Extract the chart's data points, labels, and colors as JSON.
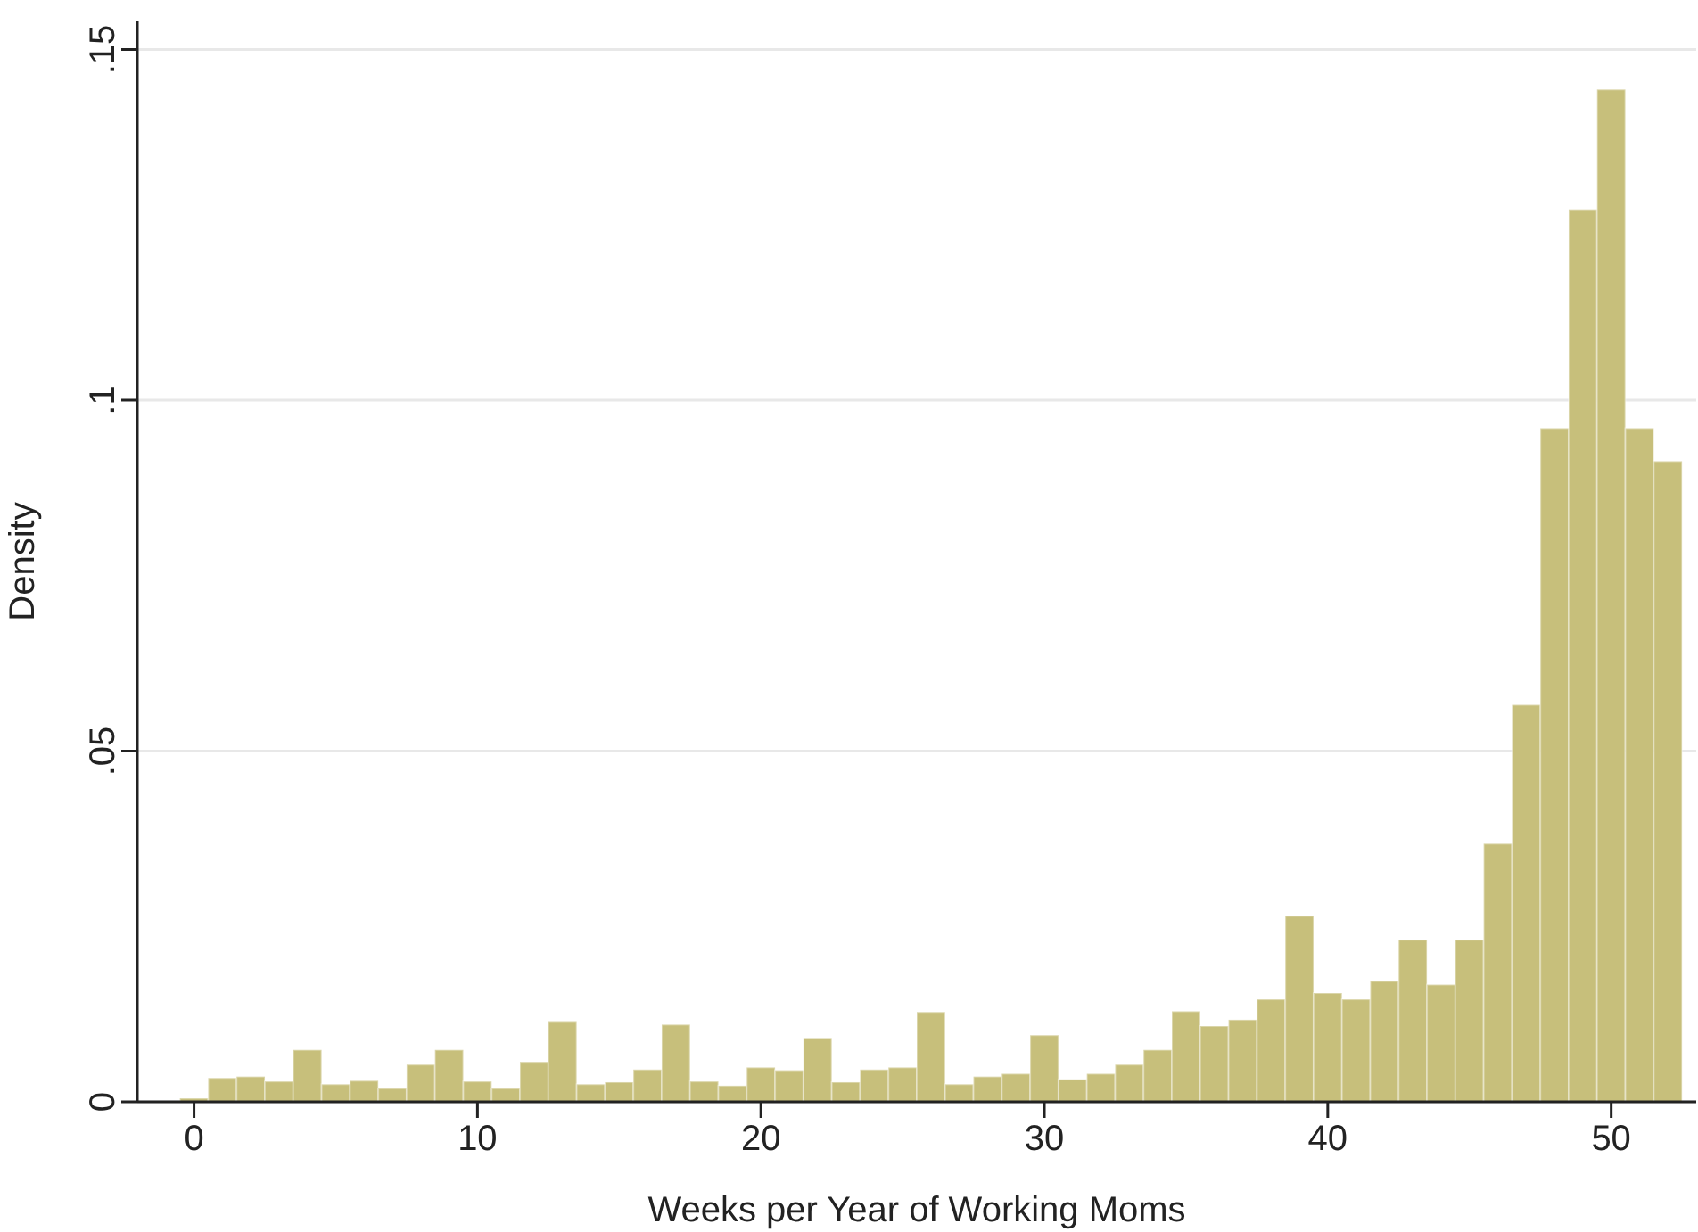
{
  "chart_data": {
    "type": "histogram",
    "xlabel": "Weeks per Year of Working Moms",
    "ylabel": "Density",
    "bins": [
      -0.5,
      0.5,
      1.5,
      2.5,
      3.5,
      4.5,
      5.5,
      6.5,
      7.5,
      8.5,
      9.5,
      10.5,
      11.5,
      12.5,
      13.5,
      14.5,
      15.5,
      16.5,
      17.5,
      18.5,
      19.5,
      20.5,
      21.5,
      22.5,
      23.5,
      24.5,
      25.5,
      26.5,
      27.5,
      28.5,
      29.5,
      30.5,
      31.5,
      32.5,
      33.5,
      34.5,
      35.5,
      36.5,
      37.5,
      38.5,
      39.5,
      40.5,
      41.5,
      42.5,
      43.5,
      44.5,
      45.5,
      46.5,
      47.5,
      48.5,
      49.5,
      50.5,
      51.5,
      52.5
    ],
    "values": [
      0.0005,
      0.0034,
      0.0036,
      0.0029,
      0.0074,
      0.0025,
      0.003,
      0.0019,
      0.0053,
      0.0074,
      0.0029,
      0.0019,
      0.0057,
      0.0115,
      0.0025,
      0.0028,
      0.0046,
      0.011,
      0.0029,
      0.0023,
      0.0049,
      0.0045,
      0.0091,
      0.0028,
      0.0046,
      0.0049,
      0.0128,
      0.0025,
      0.0036,
      0.004,
      0.0095,
      0.0032,
      0.004,
      0.0053,
      0.0074,
      0.0129,
      0.0108,
      0.0117,
      0.0146,
      0.0265,
      0.0155,
      0.0146,
      0.0172,
      0.0231,
      0.0167,
      0.0231,
      0.0368,
      0.0566,
      0.096,
      0.1271,
      0.1443,
      0.096,
      0.0913
    ],
    "color": "#c7bf7b",
    "xlim": [
      -2,
      53
    ],
    "xticks": [
      0,
      10,
      20,
      30,
      40,
      50
    ],
    "ylim": [
      0,
      0.154
    ],
    "yticks": [
      0,
      {
        "value": 0.05,
        "label": ".05"
      },
      {
        "value": 0.1,
        "label": ".1"
      },
      {
        "value": 0.15,
        "label": ".15"
      }
    ],
    "grid": "y"
  }
}
